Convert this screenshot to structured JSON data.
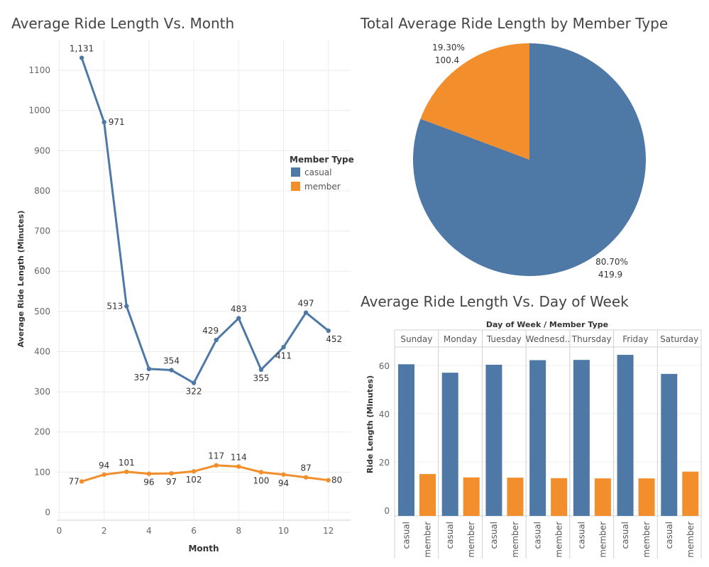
{
  "chart_data": [
    {
      "type": "line",
      "title": "Average Ride Length Vs. Month",
      "xlabel": "Month",
      "ylabel": "Average Ride Length (Minutes)",
      "xlim": [
        0,
        13
      ],
      "ylim": [
        0,
        1200
      ],
      "xticks": [
        0,
        2,
        4,
        6,
        8,
        10,
        12
      ],
      "yticks": [
        0,
        100,
        200,
        300,
        400,
        500,
        600,
        700,
        800,
        900,
        1000,
        1100
      ],
      "grid": true,
      "legend": {
        "title": "Member Type",
        "position": "top-right"
      },
      "x": [
        1,
        2,
        3,
        4,
        5,
        6,
        7,
        8,
        9,
        10,
        11,
        12
      ],
      "series": [
        {
          "name": "casual",
          "color": "#4e79a7",
          "values": [
            1131,
            971,
            513,
            357,
            354,
            322,
            429,
            483,
            355,
            411,
            497,
            452
          ],
          "labels": [
            "1,131",
            "971",
            "513",
            "357",
            "354",
            "322",
            "429",
            "483",
            "355",
            "411",
            "497",
            "452"
          ]
        },
        {
          "name": "member",
          "color": "#f28e2b",
          "values": [
            77,
            94,
            101,
            96,
            97,
            102,
            117,
            114,
            100,
            94,
            87,
            80
          ],
          "labels": [
            "77",
            "94",
            "101",
            "96",
            "97",
            "102",
            "117",
            "114",
            "100",
            "94",
            "87",
            "80"
          ]
        }
      ]
    },
    {
      "type": "pie",
      "title": "Total Average Ride Length by Member Type",
      "slices": [
        {
          "name": "casual",
          "value": 419.9,
          "percent_label": "80.70%",
          "value_label": "419.9",
          "color": "#4e79a7"
        },
        {
          "name": "member",
          "value": 100.4,
          "percent_label": "19.30%",
          "value_label": "100.4",
          "color": "#f28e2b"
        }
      ]
    },
    {
      "type": "bar",
      "title": "Average Ride Length Vs. Day of Week",
      "header_label": "Day of Week  /  Member Type",
      "ylabel": "Ride Length (Minutes)",
      "ylim": [
        0,
        72
      ],
      "yticks": [
        0,
        20,
        40,
        60
      ],
      "categories": [
        "Sunday",
        "Monday",
        "Tuesday",
        "Wednesd..",
        "Thursday",
        "Friday",
        "Saturday"
      ],
      "subcategories": [
        "casual",
        "member"
      ],
      "series": [
        {
          "name": "casual",
          "color": "#4e79a7",
          "values": [
            60.5,
            57,
            60.3,
            62.2,
            62.3,
            64.4,
            56.5
          ]
        },
        {
          "name": "member",
          "color": "#f28e2b",
          "values": [
            15,
            13.6,
            13.5,
            13.3,
            13.2,
            13.2,
            16
          ]
        }
      ]
    }
  ]
}
